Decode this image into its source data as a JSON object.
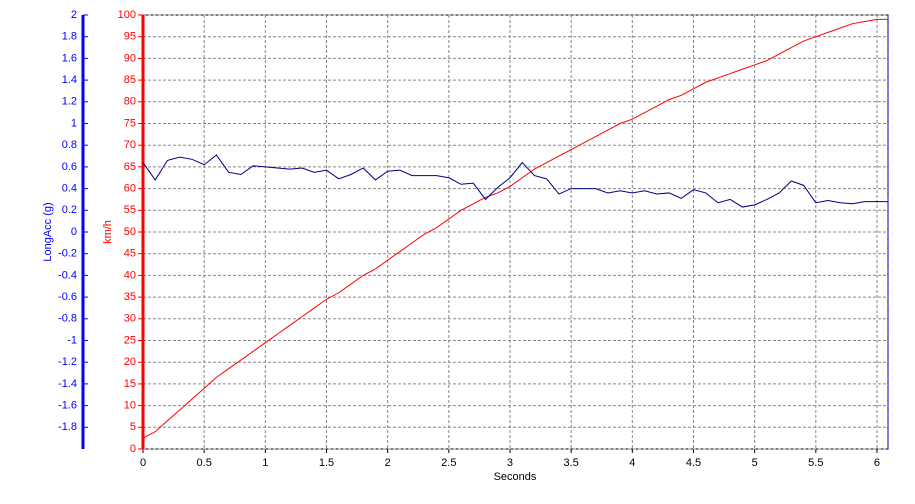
{
  "chart_data": {
    "type": "line",
    "xlabel": "Seconds",
    "ylabel": "km/h",
    "y2label": "LongAcc (g)",
    "x": [
      0,
      0.1,
      0.2,
      0.3,
      0.4,
      0.5,
      0.6,
      0.7,
      0.8,
      0.9,
      1.0,
      1.1,
      1.2,
      1.3,
      1.4,
      1.5,
      1.6,
      1.7,
      1.8,
      1.9,
      2.0,
      2.1,
      2.2,
      2.3,
      2.4,
      2.5,
      2.6,
      2.7,
      2.8,
      2.9,
      3.0,
      3.1,
      3.2,
      3.3,
      3.4,
      3.5,
      3.6,
      3.7,
      3.8,
      3.9,
      4.0,
      4.1,
      4.2,
      4.3,
      4.4,
      4.5,
      4.6,
      4.7,
      4.8,
      4.9,
      5.0,
      5.1,
      5.2,
      5.3,
      5.4,
      5.5,
      5.6,
      5.7,
      5.8,
      5.9,
      6.0,
      6.09
    ],
    "series": [
      {
        "name": "km/h",
        "color": "#ff0000",
        "axis": "y",
        "values": [
          2.5,
          4,
          6.5,
          9,
          11.5,
          14,
          16.5,
          18.5,
          20.5,
          22.5,
          24.5,
          26.5,
          28.5,
          30.5,
          32.5,
          34.5,
          36,
          38,
          40,
          41.5,
          43.5,
          45.5,
          47.5,
          49.5,
          51,
          53,
          55,
          56.5,
          58,
          59,
          60.5,
          62.5,
          64.5,
          66,
          67.5,
          69,
          70.5,
          72,
          73.5,
          75,
          76,
          77.5,
          79,
          80.5,
          81.5,
          83,
          84.5,
          85.5,
          86.5,
          87.5,
          88.5,
          89.5,
          91,
          92.5,
          94,
          95,
          96,
          97,
          98,
          98.5,
          99,
          99
        ]
      },
      {
        "name": "LongAcc (g)",
        "color": "#000080",
        "axis": "y2",
        "values": [
          0.64,
          0.48,
          0.66,
          0.69,
          0.67,
          0.62,
          0.71,
          0.55,
          0.53,
          0.61,
          0.6,
          0.59,
          0.58,
          0.59,
          0.55,
          0.57,
          0.49,
          0.53,
          0.59,
          0.48,
          0.56,
          0.57,
          0.52,
          0.52,
          0.52,
          0.5,
          0.44,
          0.45,
          0.3,
          0.41,
          0.5,
          0.64,
          0.52,
          0.49,
          0.35,
          0.4,
          0.4,
          0.4,
          0.36,
          0.38,
          0.36,
          0.38,
          0.35,
          0.36,
          0.31,
          0.39,
          0.36,
          0.27,
          0.3,
          0.23,
          0.25,
          0.3,
          0.36,
          0.47,
          0.43,
          0.27,
          0.29,
          0.27,
          0.26,
          0.28,
          0.28,
          0.28
        ]
      }
    ],
    "xlim": [
      0,
      6.09
    ],
    "xticks": [
      0,
      0.5,
      1,
      1.5,
      2,
      2.5,
      3,
      3.5,
      4,
      4.5,
      5,
      5.5,
      6
    ],
    "ylim": [
      0,
      100
    ],
    "yticks": [
      0,
      5,
      10,
      15,
      20,
      25,
      30,
      35,
      40,
      45,
      50,
      55,
      60,
      65,
      70,
      75,
      80,
      85,
      90,
      95,
      100
    ],
    "y2lim": [
      -2,
      2
    ],
    "y2ticks": [
      2,
      1.8,
      1.6,
      1.4,
      1.2,
      1,
      0.8,
      0.6,
      0.4,
      0.2,
      0,
      -0.2,
      -0.4,
      -0.6,
      -0.8,
      -1,
      -1.2,
      -1.4,
      -1.6,
      -1.8
    ],
    "grid": true
  }
}
